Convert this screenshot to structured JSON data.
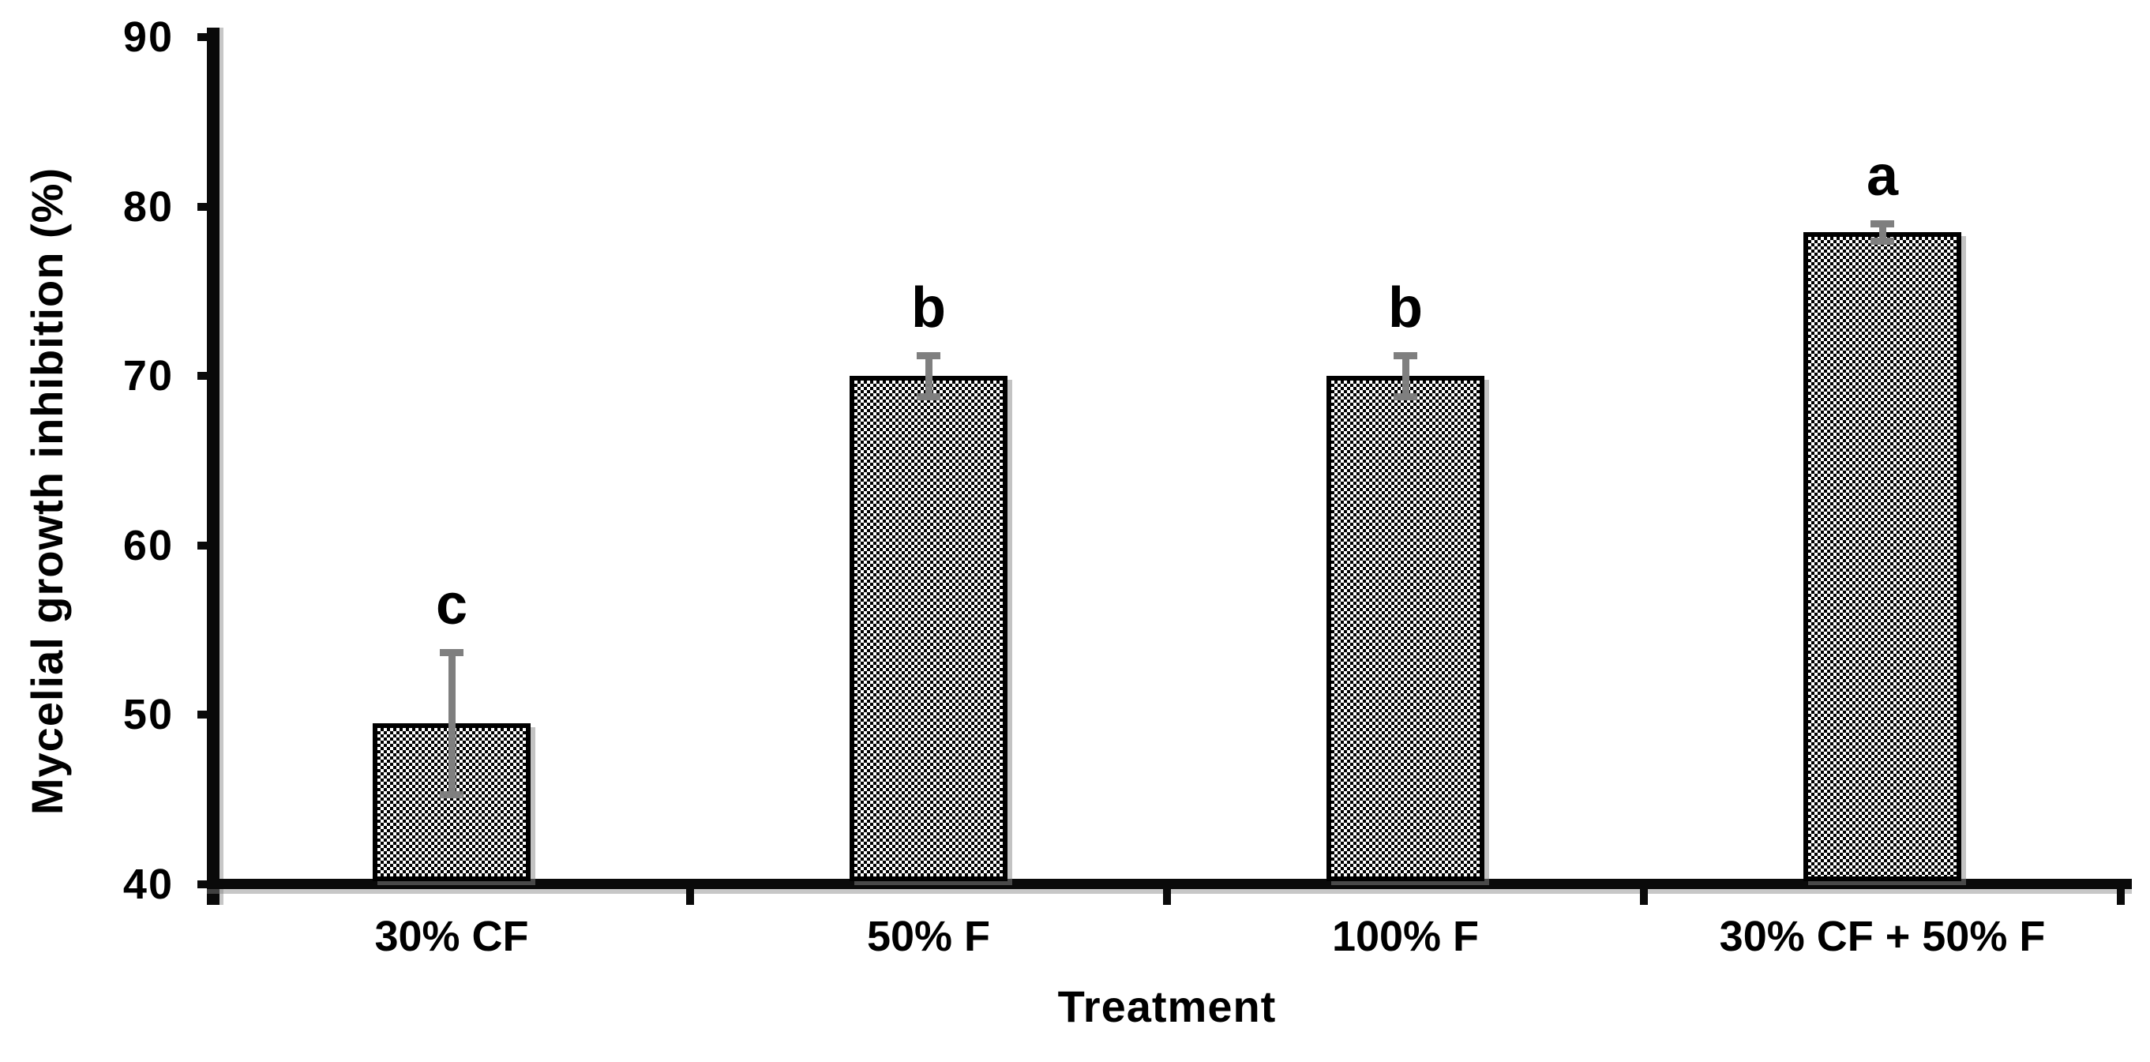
{
  "chart_data": {
    "type": "bar",
    "categories": [
      "30% CF",
      "50% F",
      "100% F",
      "30% CF + 50% F"
    ],
    "values": [
      49.5,
      70,
      70,
      78.5
    ],
    "error_bars": [
      4.2,
      1.2,
      1.2,
      0.5
    ],
    "significance_letters": [
      "c",
      "b",
      "b",
      "a"
    ],
    "xlabel": "Treatment",
    "ylabel": "Mycelial growth inhibition (%)",
    "ylim": [
      40,
      90
    ],
    "yticks": [
      40,
      50,
      60,
      70,
      80,
      90
    ],
    "grid": false,
    "legend_position": "none",
    "bar_style": {
      "fill_pattern": "checkerboard",
      "pattern_colors": [
        "#000000",
        "#ffffff"
      ],
      "border_color": "#000000",
      "error_bar_color": "#7f7f7f",
      "axis_color": "#0a0a0a",
      "text_color": "#000000",
      "background": "#ffffff"
    }
  }
}
